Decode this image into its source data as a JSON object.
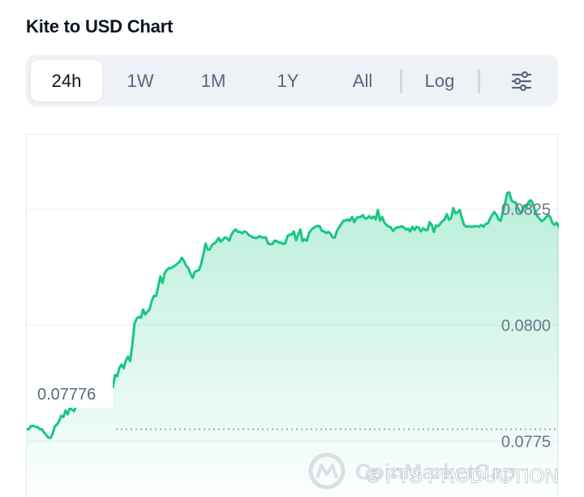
{
  "title": "Kite to USD Chart",
  "tabs": [
    {
      "label": "24h",
      "active": true
    },
    {
      "label": "1W",
      "active": false
    },
    {
      "label": "1M",
      "active": false
    },
    {
      "label": "1Y",
      "active": false
    },
    {
      "label": "All",
      "active": false
    },
    {
      "label": "Log",
      "active": false
    }
  ],
  "settings_icon": "sliders-icon",
  "colors": {
    "line": "#16c784",
    "area_top": "#16c784",
    "grid": "#eff2f5",
    "ref_line": "#a1a7bb",
    "label": "#6b778c"
  },
  "watermark": {
    "brand": "CoinMarketCap",
    "attribution": "© FTS PRODUCTION"
  },
  "chart_data": {
    "type": "area",
    "title": "",
    "xlabel": "",
    "ylabel": "",
    "y_ticks": [
      "0.0825",
      "0.0800",
      "0.0775"
    ],
    "y_tick_values": [
      0.0825,
      0.08,
      0.0775
    ],
    "ylim": [
      0.0763,
      0.0841
    ],
    "grid": true,
    "start_price": 0.07776,
    "start_price_label": "0.07776",
    "series": [
      {
        "values": [
          0.07776,
          0.07776,
          0.07783,
          0.07783,
          0.07781,
          0.07781,
          0.07776,
          0.07776,
          0.07769,
          0.07764,
          0.07758,
          0.07757,
          0.07766,
          0.07782,
          0.07786,
          0.07793,
          0.07805,
          0.07802,
          0.07816,
          0.07808,
          0.07822,
          0.07818,
          0.07815,
          0.07828,
          0.07862,
          0.07853,
          0.0785,
          0.0784,
          0.07852,
          0.07852,
          0.07845,
          0.07854,
          0.07851,
          0.07845,
          0.0785,
          0.07855,
          0.0785,
          0.07855,
          0.07855,
          0.07864,
          0.07867,
          0.07893,
          0.0789,
          0.07908,
          0.07915,
          0.07907,
          0.07924,
          0.07932,
          0.07923,
          0.07958,
          0.08003,
          0.08014,
          0.08018,
          0.08016,
          0.08034,
          0.08023,
          0.08029,
          0.08034,
          0.08052,
          0.08063,
          0.08063,
          0.08082,
          0.08105,
          0.08091,
          0.08112,
          0.08119,
          0.08123,
          0.08123,
          0.08126,
          0.08129,
          0.08133,
          0.08137,
          0.08145,
          0.08138,
          0.08128,
          0.08123,
          0.08111,
          0.08102,
          0.08115,
          0.08117,
          0.08119,
          0.08133,
          0.08153,
          0.08176,
          0.08163,
          0.08163,
          0.08173,
          0.08176,
          0.0818,
          0.08188,
          0.0818,
          0.08184,
          0.08189,
          0.08187,
          0.08182,
          0.08195,
          0.08202,
          0.08206,
          0.08201,
          0.08201,
          0.08198,
          0.08202,
          0.082,
          0.08194,
          0.08192,
          0.08189,
          0.08188,
          0.08188,
          0.08192,
          0.08189,
          0.08189,
          0.08189,
          0.08176,
          0.08174,
          0.08175,
          0.08182,
          0.08181,
          0.08178,
          0.08178,
          0.08175,
          0.08176,
          0.08192,
          0.08195,
          0.08195,
          0.08202,
          0.08183,
          0.08195,
          0.08206,
          0.08181,
          0.08185,
          0.08182,
          0.08198,
          0.08205,
          0.08209,
          0.08212,
          0.08214,
          0.08213,
          0.08203,
          0.08202,
          0.08198,
          0.08201,
          0.08197,
          0.08189,
          0.08189,
          0.08203,
          0.08211,
          0.08218,
          0.08225,
          0.08225,
          0.08228,
          0.08225,
          0.08233,
          0.08222,
          0.0823,
          0.08233,
          0.08233,
          0.08237,
          0.0823,
          0.0823,
          0.08235,
          0.0823,
          0.08234,
          0.08228,
          0.08248,
          0.08225,
          0.08233,
          0.08221,
          0.08216,
          0.08212,
          0.08211,
          0.08203,
          0.08208,
          0.08211,
          0.08211,
          0.08213,
          0.08211,
          0.08206,
          0.08208,
          0.08202,
          0.08212,
          0.08205,
          0.08212,
          0.0821,
          0.08202,
          0.08209,
          0.08205,
          0.08205,
          0.08222,
          0.08216,
          0.08201,
          0.08215,
          0.08213,
          0.08219,
          0.08224,
          0.08228,
          0.08239,
          0.08227,
          0.08231,
          0.08252,
          0.08241,
          0.08243,
          0.08248,
          0.0823,
          0.08216,
          0.08212,
          0.08213,
          0.08212,
          0.08212,
          0.08213,
          0.08213,
          0.08212,
          0.08216,
          0.08212,
          0.08218,
          0.08219,
          0.08229,
          0.08237,
          0.08244,
          0.08238,
          0.08228,
          0.08225,
          0.08244,
          0.08261,
          0.08285,
          0.08286,
          0.08269,
          0.08265,
          0.08264,
          0.08252,
          0.08244,
          0.08245,
          0.08258,
          0.08255,
          0.08266,
          0.08269,
          0.08261,
          0.08245,
          0.08235,
          0.08229,
          0.08224,
          0.08227,
          0.08232,
          0.08238,
          0.08233,
          0.0822,
          0.08216,
          0.08221,
          0.08212
        ]
      }
    ]
  }
}
